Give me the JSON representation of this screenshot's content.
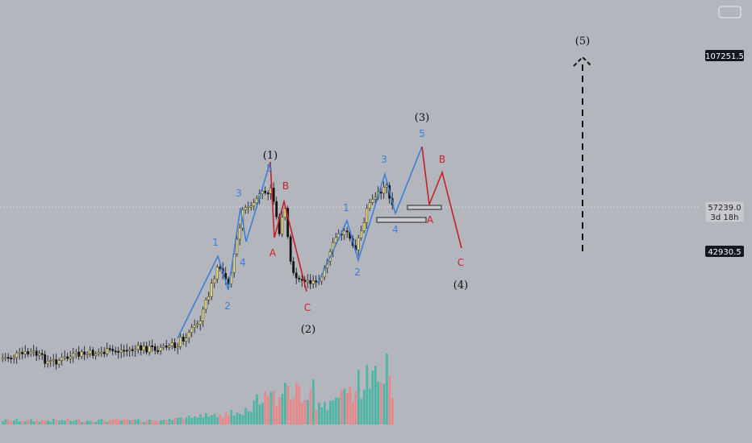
{
  "chart_data": {
    "type": "candlestick",
    "price_levels": [
      {
        "id": "top",
        "value": "107251.5"
      },
      {
        "id": "low",
        "value": "42930.5"
      }
    ],
    "current": {
      "price": "57239.0",
      "countdown": "3d 18h"
    },
    "degree_labels": [
      "(1)",
      "(2)",
      "(3)",
      "(4)",
      "(5)"
    ],
    "impulse_labels": [
      "1",
      "2",
      "3",
      "4",
      "5"
    ],
    "correction_labels": [
      "A",
      "B",
      "C"
    ],
    "colors": {
      "impulse": "#3d7fd9",
      "correction": "#c8202a",
      "candle_up": "#f3e27a",
      "candle_down": "#111111",
      "volume_up": "#4fb5a4",
      "volume_down": "#e8868a",
      "background": "#b3b6bd"
    }
  }
}
